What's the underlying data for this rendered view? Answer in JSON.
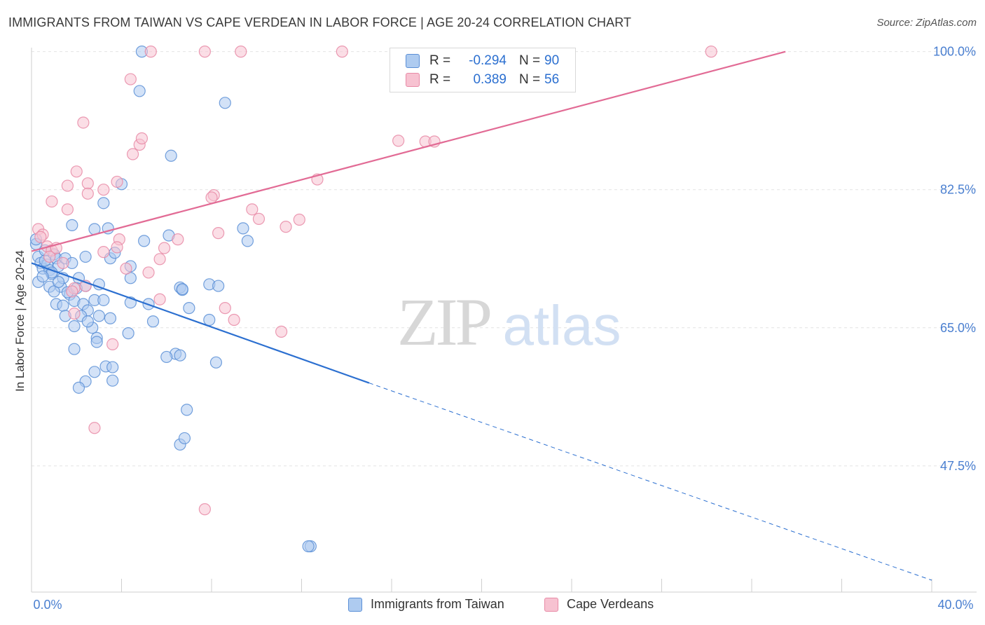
{
  "title": "IMMIGRANTS FROM TAIWAN VS CAPE VERDEAN IN LABOR FORCE | AGE 20-24 CORRELATION CHART",
  "source": "Source: ZipAtlas.com",
  "watermark": {
    "zip": "ZIP",
    "atlas": "atlas"
  },
  "colors": {
    "blue_fill": "#aecbf0",
    "blue_stroke": "#5b8fd6",
    "blue_line": "#2b6fd0",
    "pink_fill": "#f7c2d1",
    "pink_stroke": "#e88aa6",
    "pink_line": "#e26b95",
    "tick_label": "#4a7fd0",
    "grid": "#e4e4e4"
  },
  "legend_top": {
    "rows": [
      {
        "series": "blue",
        "r_label": "R =",
        "r_value": "-0.294",
        "n_label": "N =",
        "n_value": "90"
      },
      {
        "series": "pink",
        "r_label": "R =",
        "r_value": "0.389",
        "n_label": "N =",
        "n_value": "56"
      }
    ]
  },
  "legend_bottom": [
    {
      "series": "blue",
      "label": "Immigrants from Taiwan"
    },
    {
      "series": "pink",
      "label": "Cape Verdeans"
    }
  ],
  "chart_data": {
    "type": "scatter",
    "title": "IMMIGRANTS FROM TAIWAN VS CAPE VERDEAN IN LABOR FORCE | AGE 20-24 CORRELATION CHART",
    "xlabel": "",
    "ylabel": "In Labor Force | Age 20-24",
    "xlim": [
      0,
      40
    ],
    "ylim": [
      31.5,
      100.5
    ],
    "x_tick_labels": [
      {
        "value": 0,
        "label": "0.0%"
      },
      {
        "value": 40,
        "label": "40.0%"
      }
    ],
    "x_minor_ticks": [
      4,
      8,
      12,
      16,
      20,
      24,
      28,
      32,
      36
    ],
    "y_ticks": [
      {
        "value": 47.5,
        "label": "47.5%"
      },
      {
        "value": 65.0,
        "label": "65.0%"
      },
      {
        "value": 82.5,
        "label": "82.5%"
      },
      {
        "value": 100.0,
        "label": "100.0%"
      }
    ],
    "grid": true,
    "series": [
      {
        "name": "Immigrants from Taiwan",
        "color": "blue",
        "trend": {
          "x0": 0.0,
          "y0": 73.2,
          "x1": 15.0,
          "y1": 58.0,
          "dashed_to_x": 40.0,
          "dashed_to_y": 33.0
        },
        "points": [
          [
            0.2,
            75.6
          ],
          [
            0.3,
            74.0
          ],
          [
            0.4,
            73.2
          ],
          [
            0.5,
            72.5
          ],
          [
            0.6,
            74.8
          ],
          [
            0.3,
            70.8
          ],
          [
            0.7,
            73.0
          ],
          [
            0.8,
            72.3
          ],
          [
            0.9,
            71.8
          ],
          [
            1.0,
            74.3
          ],
          [
            1.1,
            73.8
          ],
          [
            1.2,
            72.8
          ],
          [
            1.3,
            70.2
          ],
          [
            1.4,
            71.3
          ],
          [
            0.6,
            73.5
          ],
          [
            0.9,
            72.0
          ],
          [
            1.5,
            73.8
          ],
          [
            1.8,
            73.2
          ],
          [
            2.1,
            71.3
          ],
          [
            2.4,
            70.3
          ],
          [
            0.8,
            70.2
          ],
          [
            1.0,
            69.6
          ],
          [
            1.1,
            68.0
          ],
          [
            1.4,
            67.8
          ],
          [
            1.7,
            69.2
          ],
          [
            1.9,
            68.4
          ],
          [
            2.3,
            68.0
          ],
          [
            2.5,
            67.2
          ],
          [
            2.8,
            68.5
          ],
          [
            3.2,
            68.5
          ],
          [
            1.5,
            66.5
          ],
          [
            1.9,
            65.2
          ],
          [
            2.2,
            66.5
          ],
          [
            2.7,
            65.0
          ],
          [
            3.0,
            66.5
          ],
          [
            3.5,
            66.2
          ],
          [
            2.9,
            63.7
          ],
          [
            1.9,
            62.3
          ],
          [
            2.9,
            63.2
          ],
          [
            3.3,
            60.1
          ],
          [
            2.8,
            59.4
          ],
          [
            2.4,
            58.2
          ],
          [
            2.1,
            57.4
          ],
          [
            3.6,
            58.3
          ],
          [
            3.6,
            60.0
          ],
          [
            2.5,
            65.8
          ],
          [
            4.3,
            64.3
          ],
          [
            4.4,
            68.2
          ],
          [
            5.2,
            68.0
          ],
          [
            5.4,
            65.8
          ],
          [
            4.4,
            71.3
          ],
          [
            4.4,
            72.8
          ],
          [
            3.5,
            73.8
          ],
          [
            3.7,
            74.5
          ],
          [
            2.4,
            74.0
          ],
          [
            1.8,
            78.0
          ],
          [
            2.8,
            77.5
          ],
          [
            3.4,
            77.6
          ],
          [
            3.2,
            80.8
          ],
          [
            4.0,
            83.2
          ],
          [
            5.0,
            76.0
          ],
          [
            6.1,
            76.7
          ],
          [
            9.4,
            77.6
          ],
          [
            9.6,
            76.0
          ],
          [
            6.4,
            61.7
          ],
          [
            6.6,
            61.5
          ],
          [
            6.0,
            61.3
          ],
          [
            8.2,
            60.6
          ],
          [
            6.6,
            70.1
          ],
          [
            6.7,
            69.8
          ],
          [
            6.7,
            69.9
          ],
          [
            7.0,
            67.5
          ],
          [
            7.9,
            66.0
          ],
          [
            7.9,
            70.5
          ],
          [
            8.3,
            70.3
          ],
          [
            6.2,
            86.8
          ],
          [
            6.9,
            54.6
          ],
          [
            6.6,
            50.2
          ],
          [
            6.8,
            51.0
          ],
          [
            4.8,
            95.0
          ],
          [
            8.6,
            93.5
          ],
          [
            4.9,
            100.0
          ],
          [
            12.4,
            37.3
          ],
          [
            12.3,
            37.3
          ],
          [
            0.2,
            76.2
          ],
          [
            1.6,
            69.5
          ],
          [
            0.5,
            71.5
          ],
          [
            1.2,
            70.8
          ],
          [
            2.0,
            70.0
          ],
          [
            3.0,
            70.5
          ]
        ]
      },
      {
        "name": "Cape Verdeans",
        "color": "pink",
        "trend": {
          "x0": 0.0,
          "y0": 74.7,
          "x1": 33.5,
          "y1": 100.0
        },
        "points": [
          [
            0.3,
            77.5
          ],
          [
            0.5,
            76.8
          ],
          [
            0.7,
            75.3
          ],
          [
            0.9,
            74.8
          ],
          [
            1.1,
            75.1
          ],
          [
            0.4,
            76.5
          ],
          [
            0.8,
            74.0
          ],
          [
            1.4,
            73.2
          ],
          [
            1.9,
            70.0
          ],
          [
            2.4,
            70.3
          ],
          [
            1.8,
            69.6
          ],
          [
            1.9,
            66.8
          ],
          [
            3.6,
            62.9
          ],
          [
            2.8,
            52.3
          ],
          [
            1.6,
            80.0
          ],
          [
            0.9,
            81.0
          ],
          [
            1.6,
            83.0
          ],
          [
            2.0,
            84.8
          ],
          [
            2.5,
            83.3
          ],
          [
            2.5,
            82.0
          ],
          [
            3.2,
            82.5
          ],
          [
            3.8,
            83.5
          ],
          [
            3.9,
            76.2
          ],
          [
            3.8,
            75.2
          ],
          [
            3.2,
            74.6
          ],
          [
            4.2,
            72.5
          ],
          [
            5.2,
            72.0
          ],
          [
            5.7,
            73.7
          ],
          [
            5.9,
            75.1
          ],
          [
            6.5,
            76.2
          ],
          [
            5.7,
            68.6
          ],
          [
            4.5,
            87.0
          ],
          [
            4.8,
            88.2
          ],
          [
            4.9,
            89.0
          ],
          [
            2.3,
            91.0
          ],
          [
            4.4,
            96.5
          ],
          [
            8.1,
            81.8
          ],
          [
            8.0,
            81.5
          ],
          [
            8.3,
            77.0
          ],
          [
            8.6,
            67.5
          ],
          [
            9.0,
            66.0
          ],
          [
            9.8,
            80.0
          ],
          [
            10.1,
            78.8
          ],
          [
            11.3,
            77.8
          ],
          [
            11.9,
            78.7
          ],
          [
            11.1,
            64.5
          ],
          [
            12.7,
            83.8
          ],
          [
            16.3,
            88.7
          ],
          [
            17.5,
            88.6
          ],
          [
            17.9,
            88.6
          ],
          [
            5.3,
            100.0
          ],
          [
            7.7,
            100.0
          ],
          [
            9.3,
            100.0
          ],
          [
            13.8,
            100.0
          ],
          [
            30.2,
            100.0
          ],
          [
            7.7,
            42.0
          ]
        ]
      }
    ]
  }
}
